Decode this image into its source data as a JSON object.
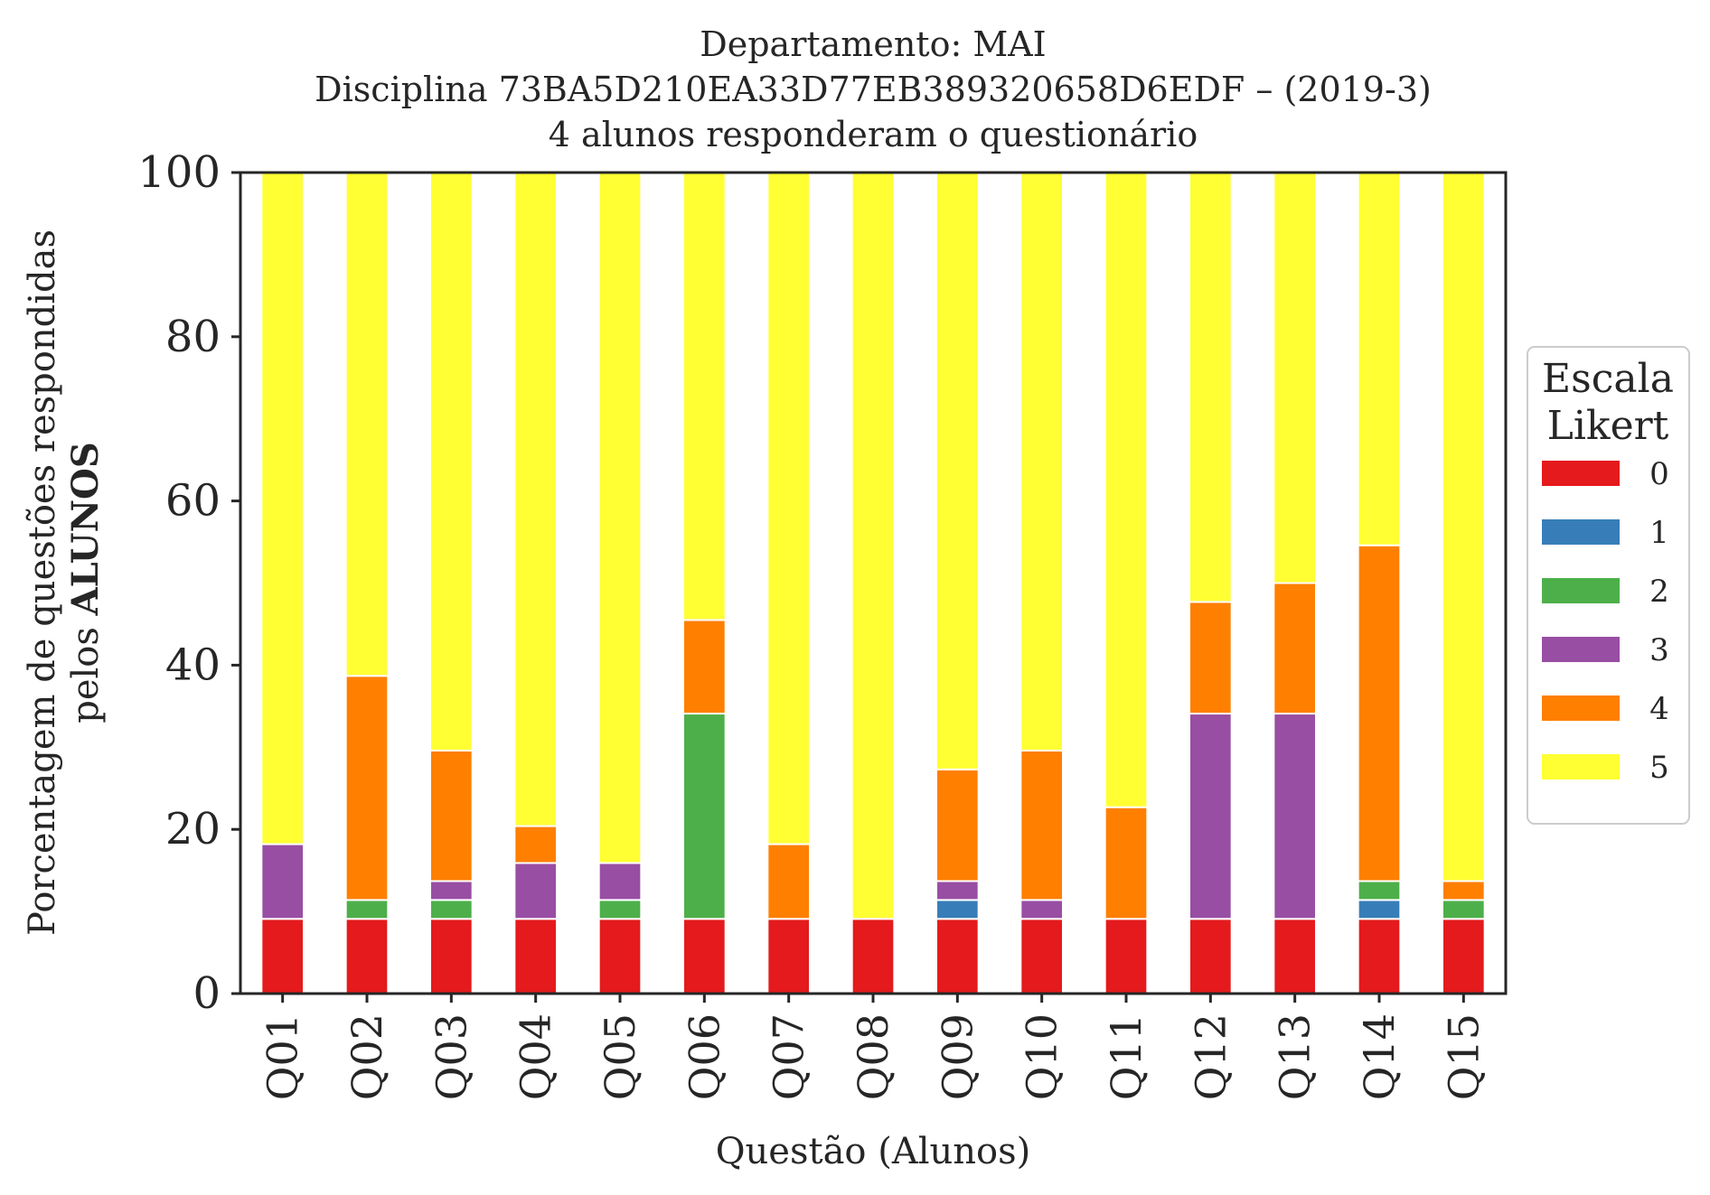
{
  "chart_data": {
    "type": "bar",
    "stacked": true,
    "title": [
      "Departamento: MAI",
      "Disciplina 73BA5D210EA33D77EB389320658D6EDF – (2019-3)",
      "4 alunos responderam o questionário"
    ],
    "xlabel": "Questão (Alunos)",
    "ylabel_line1": "Porcentagem de questões respondidas",
    "ylabel_line2_prefix": "pelos ",
    "ylabel_line2_bold": "ALUNOS",
    "ylim": [
      0,
      100
    ],
    "yticks": [
      "0",
      "20",
      "40",
      "60",
      "80",
      "100"
    ],
    "grid": false,
    "legend": {
      "title_line1": "Escala",
      "title_line2": "Likert",
      "placement": "right"
    },
    "categories": [
      "Q01",
      "Q02",
      "Q03",
      "Q04",
      "Q05",
      "Q06",
      "Q07",
      "Q08",
      "Q09",
      "Q10",
      "Q11",
      "Q12",
      "Q13",
      "Q14",
      "Q15"
    ],
    "series": [
      {
        "name": "0",
        "color": "#e41a1c",
        "values": [
          9.1,
          9.1,
          9.1,
          9.1,
          9.1,
          9.1,
          9.1,
          9.1,
          9.1,
          9.1,
          9.1,
          9.1,
          9.1,
          9.1,
          9.1
        ]
      },
      {
        "name": "1",
        "color": "#377eb8",
        "values": [
          0,
          0,
          0,
          0,
          0,
          0,
          0,
          0,
          2.3,
          0,
          0,
          0,
          0,
          2.3,
          0
        ]
      },
      {
        "name": "2",
        "color": "#4daf4a",
        "values": [
          0,
          2.3,
          2.3,
          0,
          2.3,
          25.0,
          0,
          0,
          0,
          0,
          0,
          0,
          0,
          2.3,
          2.3
        ]
      },
      {
        "name": "3",
        "color": "#984ea3",
        "values": [
          9.1,
          0,
          2.3,
          6.8,
          4.5,
          0,
          0,
          0,
          2.3,
          2.3,
          0,
          25.0,
          25.0,
          0,
          0
        ]
      },
      {
        "name": "4",
        "color": "#ff7f00",
        "values": [
          0,
          27.3,
          15.9,
          4.5,
          0,
          11.4,
          9.1,
          0,
          13.6,
          18.2,
          13.6,
          13.6,
          15.9,
          40.9,
          2.3
        ]
      },
      {
        "name": "5",
        "color": "#ffff33",
        "values": [
          81.8,
          61.3,
          70.4,
          79.6,
          84.1,
          54.5,
          81.8,
          90.9,
          72.7,
          70.4,
          77.3,
          52.3,
          50.0,
          45.4,
          86.3
        ]
      }
    ]
  }
}
